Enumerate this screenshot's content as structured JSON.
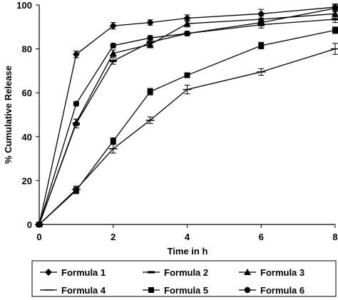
{
  "chart_data": {
    "type": "line",
    "xlabel": "Time in h",
    "ylabel": "% Cumulative Release",
    "xlim": [
      0,
      8
    ],
    "ylim": [
      0,
      100
    ],
    "x_ticks": [
      0,
      2,
      4,
      6,
      8
    ],
    "y_ticks": [
      0,
      20,
      40,
      60,
      80,
      100
    ],
    "grid": false,
    "legend_position": "bottom",
    "x": [
      0,
      1,
      2,
      3,
      4,
      6,
      8
    ],
    "series": [
      {
        "name": "Formula 1",
        "marker": "diamond",
        "values": [
          0,
          77.5,
          90.5,
          92,
          94,
          96,
          99
        ],
        "errors": [
          0,
          1.5,
          1.5,
          1.2,
          1.5,
          2,
          1.5
        ]
      },
      {
        "name": "Formula 2",
        "marker": "dash",
        "values": [
          0,
          46,
          74.5,
          83,
          87,
          91,
          93.5
        ],
        "errors": [
          0,
          2,
          1.5,
          1.5,
          1,
          1.5,
          1.5
        ]
      },
      {
        "name": "Formula 3",
        "marker": "triangle",
        "values": [
          0,
          46.5,
          78,
          82,
          91.5,
          93.5,
          96
        ],
        "errors": [
          0,
          1.5,
          1.5,
          1.5,
          1.5,
          1.5,
          1.5
        ]
      },
      {
        "name": "Formula 4",
        "marker": "hline",
        "values": [
          0,
          16,
          34.5,
          47.5,
          61.5,
          69.5,
          80
        ],
        "errors": [
          0,
          1.5,
          2,
          1.5,
          2,
          1.5,
          2.5
        ]
      },
      {
        "name": "Formula 5",
        "marker": "square",
        "values": [
          0,
          15.5,
          38,
          60.5,
          68,
          81.5,
          88.5
        ],
        "errors": [
          0,
          1.5,
          1.5,
          1.5,
          1,
          1.5,
          1.5
        ]
      },
      {
        "name": "Formula 6",
        "marker": "circle",
        "values": [
          0,
          55,
          81.5,
          85,
          87,
          92,
          98.5
        ],
        "errors": [
          0,
          1,
          1,
          1,
          1,
          1.5,
          1.5
        ]
      }
    ]
  }
}
